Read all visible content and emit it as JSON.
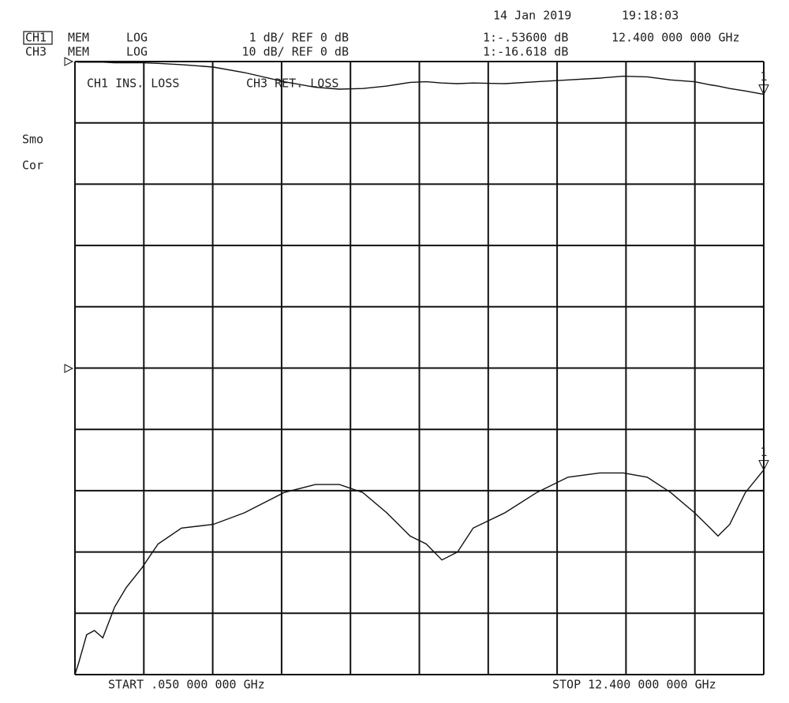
{
  "chart_data": {
    "type": "line",
    "date": "14 Jan 2019",
    "time": "19:18:03",
    "channels": [
      {
        "label": "CH1",
        "mode": "MEM",
        "format": "LOG",
        "scale": "1 dB/ REF 0 dB",
        "marker_readout": "1:-.53600 dB"
      },
      {
        "label": "CH3",
        "mode": "MEM",
        "format": "LOG",
        "scale": "10 dB/ REF 0 dB",
        "marker_readout": "1:-16.618 dB"
      }
    ],
    "marker_frequency": "12.400 000 000 GHz",
    "marker_label": "1",
    "side_labels": [
      "Smo",
      "Cor"
    ],
    "start_label": "START .050 000 000 GHz",
    "stop_label": "STOP 12.400 000 000 GHz",
    "x": [
      0.05,
      0.12,
      0.26,
      0.4,
      0.55,
      0.76,
      0.97,
      1.25,
      1.54,
      1.96,
      2.53,
      3.09,
      3.8,
      4.36,
      4.79,
      5.21,
      5.64,
      6.06,
      6.35,
      6.63,
      6.91,
      7.19,
      7.76,
      8.33,
      8.89,
      9.46,
      9.88,
      10.31,
      10.73,
      11.16,
      11.44,
      11.58,
      11.79,
      12.07,
      12.4
    ],
    "series": [
      {
        "name": "CH1 INS. LOSS",
        "color": "#111111",
        "values": [
          0,
          -0.01,
          -0.01,
          -0.01,
          -0.01,
          -0.02,
          -0.02,
          -0.02,
          -0.03,
          -0.05,
          -0.09,
          -0.18,
          -0.33,
          -0.42,
          -0.45,
          -0.44,
          -0.4,
          -0.34,
          -0.33,
          -0.35,
          -0.36,
          -0.35,
          -0.36,
          -0.33,
          -0.3,
          -0.27,
          -0.24,
          -0.25,
          -0.3,
          -0.33,
          -0.38,
          -0.4,
          -0.44,
          -0.48,
          -0.536
        ]
      },
      {
        "name": "CH3 RET. LOSS",
        "color": "#111111",
        "axis": "y2",
        "values": [
          -50,
          -48,
          -43.5,
          -42.8,
          -44,
          -39,
          -35.8,
          -32.6,
          -28.7,
          -26.1,
          -25.5,
          -23.6,
          -20.3,
          -19,
          -19,
          -20.3,
          -23.6,
          -27.4,
          -28.7,
          -31.3,
          -30,
          -26.1,
          -23.6,
          -20.3,
          -17.8,
          -17.1,
          -17.1,
          -17.8,
          -20.3,
          -23.6,
          -26.1,
          -27.4,
          -25.5,
          -20.3,
          -16.618
        ]
      }
    ],
    "xlim": [
      0.05,
      12.4
    ],
    "xticks": [
      0.05,
      1.285,
      2.52,
      3.755,
      4.99,
      6.225,
      7.46,
      8.695,
      9.93,
      11.165,
      12.4
    ],
    "ylim": [
      -10,
      0
    ],
    "yticks": [
      -10,
      -9,
      -8,
      -7,
      -6,
      -5,
      -4,
      -3,
      -2,
      -1,
      0
    ],
    "y2lim": [
      -50,
      50
    ],
    "y2ticks": [
      -50,
      -40,
      -30,
      -20,
      -10,
      0,
      10,
      20,
      30,
      40,
      50
    ],
    "grid": true
  }
}
